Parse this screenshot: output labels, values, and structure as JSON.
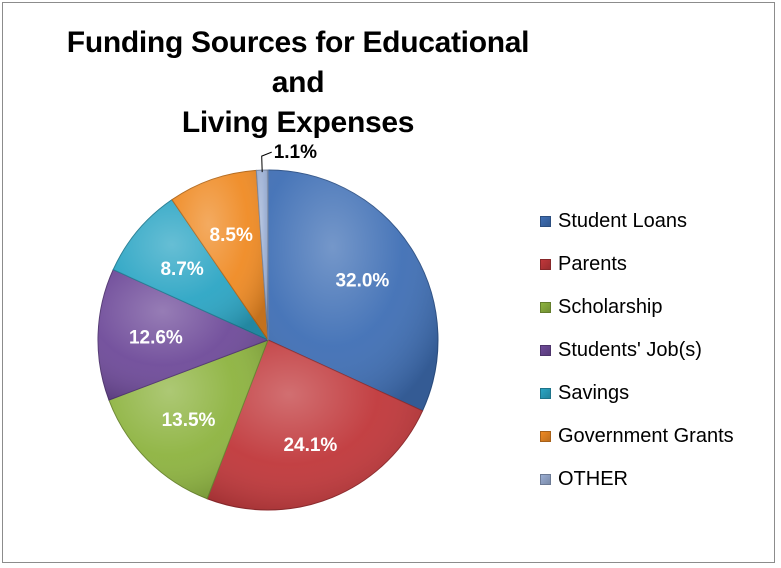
{
  "chart_data": {
    "type": "pie",
    "title": "Funding Sources for Educational and Living Expenses",
    "title_lines": [
      "Funding Sources for Educational and",
      "Living Expenses"
    ],
    "legend_position": "right",
    "categories": [
      "Student Loans",
      "Parents",
      "Scholarship",
      "Students' Job(s)",
      "Savings",
      "Government Grants",
      "OTHER"
    ],
    "values": [
      32.0,
      24.1,
      13.5,
      12.6,
      8.7,
      8.5,
      1.1
    ],
    "labels": [
      "32.0%",
      "24.1%",
      "13.5%",
      "12.6%",
      "8.7%",
      "8.5%",
      "1.1%"
    ],
    "colors": [
      "#3f6fb5",
      "#c0373a",
      "#8db33f",
      "#6e4a99",
      "#2ba5c4",
      "#ef8a23",
      "#9aaed3"
    ]
  }
}
